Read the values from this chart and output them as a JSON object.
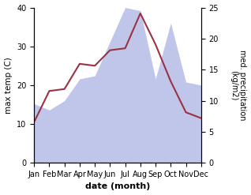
{
  "months": [
    "Jan",
    "Feb",
    "Mar",
    "Apr",
    "May",
    "Jun",
    "Jul",
    "Aug",
    "Sep",
    "Oct",
    "Nov",
    "Dec"
  ],
  "max_temp": [
    10.5,
    18.5,
    19.0,
    25.5,
    25.0,
    29.0,
    29.5,
    38.5,
    30.5,
    21.0,
    13.0,
    11.5
  ],
  "precipitation": [
    9.5,
    8.5,
    10.0,
    13.5,
    14.0,
    19.5,
    25.0,
    24.5,
    13.5,
    22.5,
    13.0,
    12.5
  ],
  "temp_color": "#993344",
  "precip_fill_color": "#b8c0e8",
  "ylabel_left": "max temp (C)",
  "ylabel_right": "med. precipitation\n(kg/m2)",
  "xlabel": "date (month)",
  "ylim_left": [
    0,
    40
  ],
  "ylim_right": [
    0,
    25
  ],
  "yticks_left": [
    0,
    10,
    20,
    30,
    40
  ],
  "yticks_right": [
    0,
    5,
    10,
    15,
    20,
    25
  ],
  "bg_color": "#ffffff"
}
